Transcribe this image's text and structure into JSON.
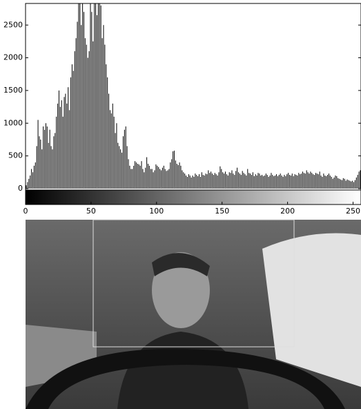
{
  "chart_data": {
    "type": "stem",
    "color": "#000000",
    "xlim": [
      0,
      255
    ],
    "xticks": [
      0,
      50,
      100,
      150,
      200,
      250
    ],
    "ylim": [
      0,
      2830
    ],
    "yticks": [
      0,
      500,
      1000,
      1500,
      2000,
      2500
    ],
    "colorbar": true,
    "values": [
      50,
      100,
      150,
      200,
      300,
      250,
      350,
      400,
      650,
      1050,
      800,
      750,
      600,
      950,
      900,
      1000,
      950,
      700,
      900,
      650,
      600,
      800,
      850,
      1100,
      1300,
      1500,
      1250,
      1350,
      1100,
      1400,
      1450,
      1300,
      1550,
      1200,
      1700,
      1900,
      1800,
      2100,
      2300,
      2550,
      2830,
      2830,
      2500,
      2830,
      2700,
      2300,
      2200,
      2000,
      2100,
      2830,
      2700,
      2250,
      2830,
      2830,
      2650,
      2830,
      2830,
      2800,
      2300,
      2500,
      2200,
      1900,
      1700,
      1450,
      1200,
      1150,
      1300,
      1100,
      850,
      1000,
      700,
      650,
      600,
      550,
      800,
      900,
      950,
      650,
      450,
      350,
      300,
      300,
      350,
      420,
      400,
      380,
      370,
      350,
      420,
      300,
      250,
      320,
      480,
      380,
      350,
      300,
      300,
      250,
      280,
      370,
      350,
      330,
      300,
      280,
      320,
      350,
      300,
      270,
      280,
      300,
      400,
      450,
      570,
      580,
      430,
      380,
      360,
      400,
      350,
      280,
      250,
      230,
      200,
      180,
      220,
      200,
      170,
      200,
      180,
      230,
      210,
      190,
      220,
      180,
      250,
      210,
      200,
      230,
      220,
      280,
      240,
      260,
      230,
      210,
      240,
      220,
      200,
      250,
      340,
      300,
      250,
      230,
      260,
      220,
      200,
      250,
      240,
      280,
      230,
      210,
      270,
      320,
      250,
      230,
      210,
      270,
      240,
      220,
      200,
      300,
      240,
      230,
      210,
      250,
      190,
      220,
      200,
      240,
      230,
      200,
      210,
      190,
      200,
      230,
      210,
      180,
      200,
      240,
      210,
      190,
      200,
      220,
      190,
      210,
      230,
      200,
      180,
      210,
      190,
      220,
      240,
      210,
      200,
      230,
      190,
      220,
      210,
      200,
      240,
      220,
      230,
      260,
      240,
      230,
      280,
      250,
      230,
      260,
      240,
      220,
      210,
      240,
      230,
      220,
      260,
      200,
      180,
      230,
      200,
      190,
      210,
      230,
      200,
      180,
      150,
      170,
      200,
      190,
      160,
      150,
      140,
      130,
      160,
      150,
      120,
      140,
      130,
      120,
      110,
      120,
      100,
      130,
      170,
      210,
      260,
      280
    ]
  }
}
